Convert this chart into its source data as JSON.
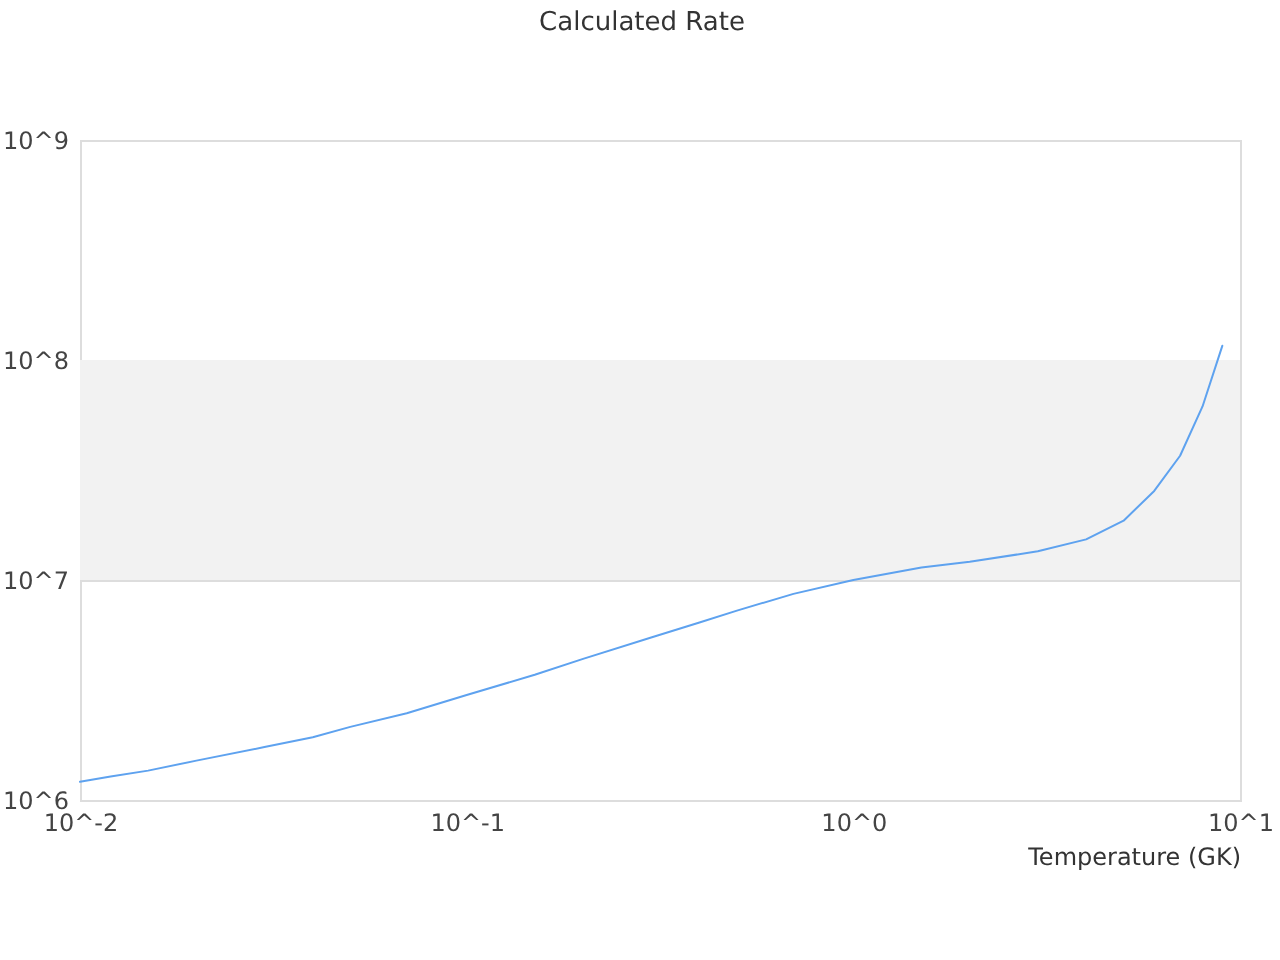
{
  "chart_data": {
    "type": "line",
    "title": "Calculated Rate",
    "xlabel": "Temperature (GK)",
    "x": [
      0.01,
      0.012,
      0.015,
      0.02,
      0.03,
      0.04,
      0.05,
      0.07,
      0.1,
      0.15,
      0.2,
      0.3,
      0.4,
      0.5,
      0.7,
      1,
      1.5,
      2,
      3,
      4,
      5,
      6,
      7,
      8,
      9
    ],
    "series": [
      {
        "color": "#5ea2ef",
        "values": [
          1210000,
          1280000,
          1360000,
          1510000,
          1740000,
          1930000,
          2150000,
          2480000,
          3000000,
          3710000,
          4380000,
          5480000,
          6410000,
          7260000,
          8650000,
          10000000,
          11400000,
          12100000,
          13500000,
          15300000,
          18600000,
          25400000,
          36700000,
          61500000,
          116000000
        ]
      }
    ],
    "xlim": [
      0.01,
      10
    ],
    "ylim": [
      1000000,
      1000000000
    ],
    "xticks": [
      {
        "value": 0.01,
        "label": "10^-2"
      },
      {
        "value": 0.1,
        "label": "10^-1"
      },
      {
        "value": 1,
        "label": "10^0"
      },
      {
        "value": 10,
        "label": "10^1"
      }
    ],
    "yticks": [
      {
        "value": 1000000,
        "label": "10^6"
      },
      {
        "value": 10000000,
        "label": "10^7"
      },
      {
        "value": 100000000,
        "label": "10^8"
      },
      {
        "value": 1000000000,
        "label": "10^9"
      }
    ],
    "log": "xy",
    "grid": "y",
    "bands": [
      {
        "axis": "y",
        "from": 10000000,
        "to": 100000000,
        "color": "#f2f2f2"
      }
    ]
  }
}
